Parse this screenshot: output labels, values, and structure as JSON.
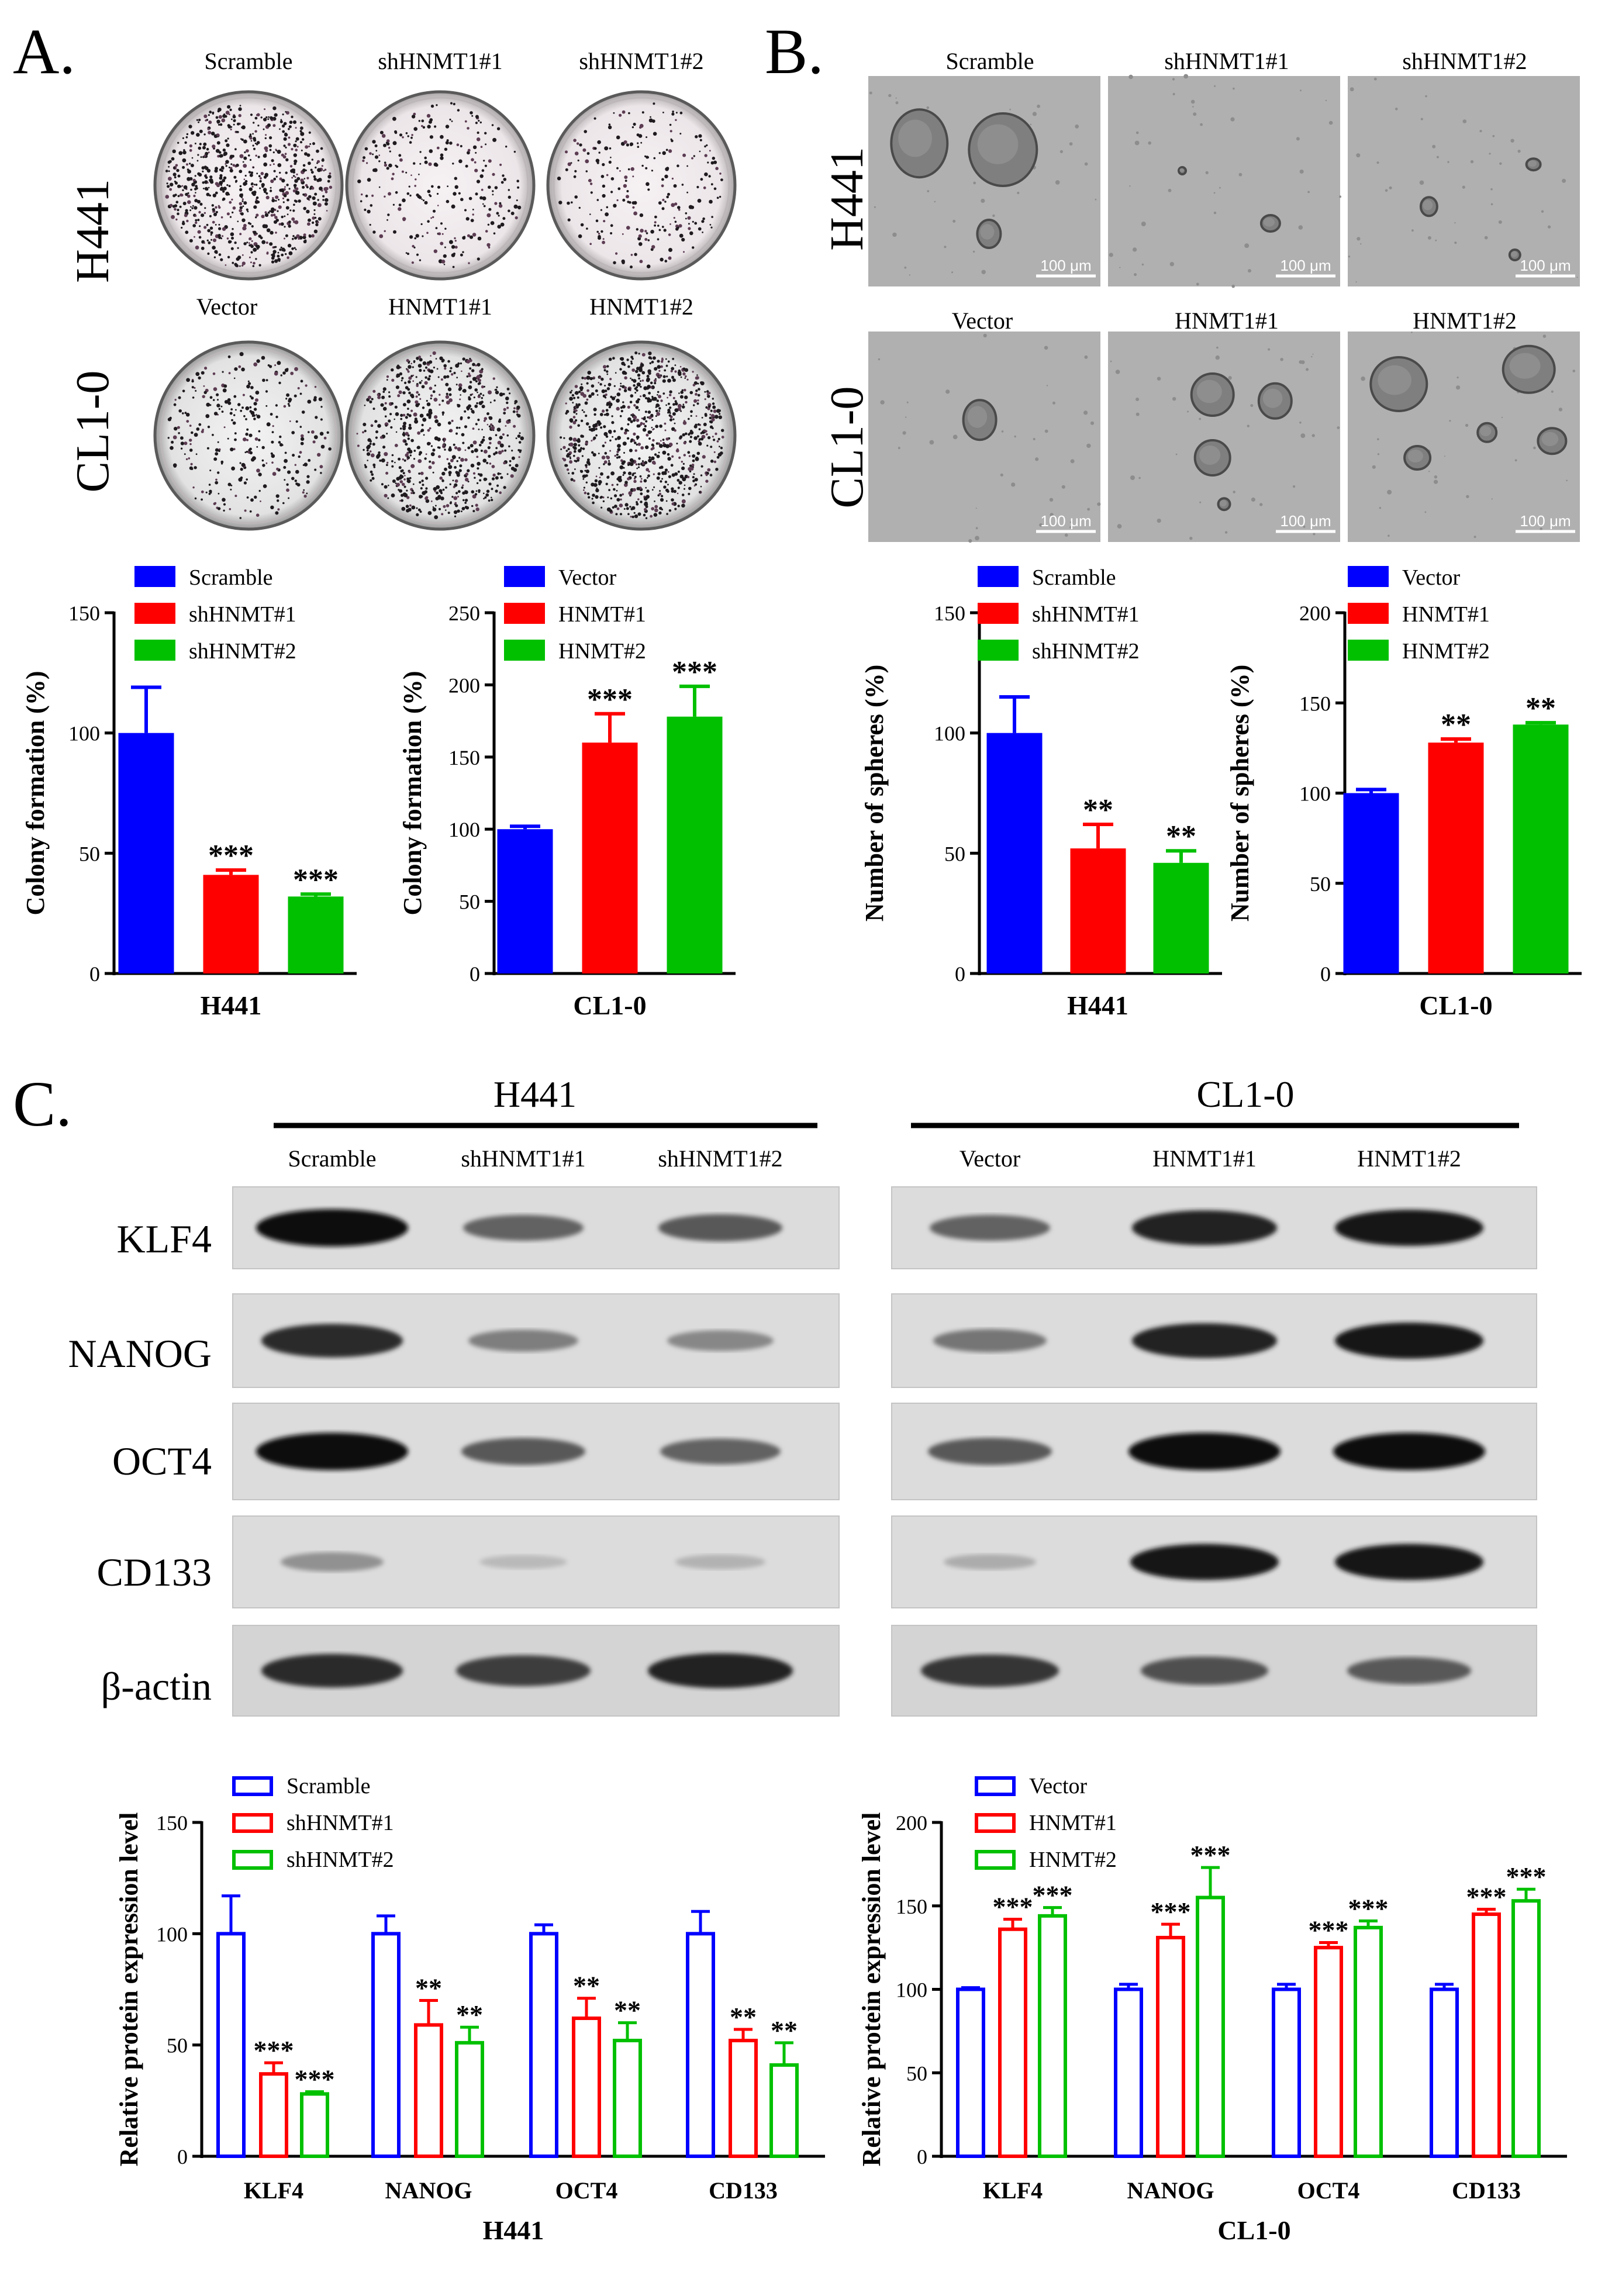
{
  "panels": {
    "A": {
      "letter": "A.",
      "row_labels": [
        "H441",
        "CL1-0"
      ],
      "dish_labels": [
        [
          "Scramble",
          "shHNMT1#1",
          "shHNMT1#2"
        ],
        [
          "Vector",
          "HNMT1#1",
          "HNMT1#2"
        ]
      ],
      "dish_density": [
        [
          0.85,
          0.3,
          0.28
        ],
        [
          0.35,
          0.75,
          0.95
        ]
      ]
    },
    "B": {
      "letter": "B.",
      "row_labels": [
        "H441",
        "CL1-0"
      ],
      "image_labels": [
        [
          "Scramble",
          "shHNMT1#1",
          "shHNMT1#2"
        ],
        [
          "Vector",
          "HNMT1#1",
          "HNMT1#2"
        ]
      ],
      "scale_bar": "100 μm"
    },
    "C": {
      "letter": "C.",
      "groups": [
        {
          "title": "H441",
          "lanes": [
            "Scramble",
            "shHNMT1#1",
            "shHNMT1#2"
          ]
        },
        {
          "title": "CL1-0",
          "lanes": [
            "Vector",
            "HNMT1#1",
            "HNMT1#2"
          ]
        }
      ],
      "proteins": [
        "KLF4",
        "NANOG",
        "OCT4",
        "CD133",
        "β-actin"
      ],
      "band_intensity": {
        "left": [
          [
            1.0,
            0.55,
            0.6
          ],
          [
            0.85,
            0.4,
            0.35
          ],
          [
            1.0,
            0.6,
            0.55
          ],
          [
            0.3,
            0.08,
            0.12
          ],
          [
            0.85,
            0.75,
            0.9
          ]
        ],
        "right": [
          [
            0.55,
            0.9,
            0.95
          ],
          [
            0.45,
            0.9,
            0.95
          ],
          [
            0.6,
            1.0,
            1.0
          ],
          [
            0.15,
            0.95,
            0.95
          ],
          [
            0.8,
            0.65,
            0.6
          ]
        ]
      }
    }
  },
  "colors": {
    "blue": "#0000ff",
    "red": "#ff0000",
    "green": "#00c000"
  },
  "chart_data": [
    {
      "type": "bar",
      "id": "A-H441",
      "categories": [
        "Scramble",
        "shHNMT#1",
        "shHNMT#2"
      ],
      "values": [
        100,
        41,
        32
      ],
      "errors": [
        19,
        2,
        1
      ],
      "significance": [
        "",
        "***",
        "***"
      ],
      "xlabel": "H441",
      "ylabel": "Colony formation (%)",
      "ylim": [
        0,
        150
      ],
      "yticks": [
        0,
        50,
        100,
        150
      ],
      "legend": [
        "Scramble",
        "shHNMT#1",
        "shHNMT#2"
      ]
    },
    {
      "type": "bar",
      "id": "A-CL1-0",
      "categories": [
        "Vector",
        "HNMT#1",
        "HNMT#2"
      ],
      "values": [
        100,
        160,
        178
      ],
      "errors": [
        2,
        20,
        21
      ],
      "significance": [
        "",
        "***",
        "***"
      ],
      "xlabel": "CL1-0",
      "ylabel": "Colony formation (%)",
      "ylim": [
        0,
        250
      ],
      "yticks": [
        0,
        50,
        100,
        150,
        200,
        250
      ],
      "legend": [
        "Vector",
        "HNMT#1",
        "HNMT#2"
      ]
    },
    {
      "type": "bar",
      "id": "B-H441",
      "categories": [
        "Scramble",
        "shHNMT#1",
        "shHNMT#2"
      ],
      "values": [
        100,
        52,
        46
      ],
      "errors": [
        15,
        10,
        5
      ],
      "significance": [
        "",
        "**",
        "**"
      ],
      "xlabel": "H441",
      "ylabel": "Number of spheres (%)",
      "ylim": [
        0,
        150
      ],
      "yticks": [
        0,
        50,
        100,
        150
      ],
      "legend": [
        "Scramble",
        "shHNMT#1",
        "shHNMT#2"
      ]
    },
    {
      "type": "bar",
      "id": "B-CL1-0",
      "categories": [
        "Vector",
        "HNMT#1",
        "HNMT#2"
      ],
      "values": [
        100,
        128,
        138
      ],
      "errors": [
        2,
        2,
        1
      ],
      "significance": [
        "",
        "**",
        "**"
      ],
      "xlabel": "CL1-0",
      "ylabel": "Number of spheres (%)",
      "ylim": [
        0,
        200
      ],
      "yticks": [
        0,
        50,
        100,
        150,
        200
      ],
      "legend": [
        "Vector",
        "HNMT#1",
        "HNMT#2"
      ]
    },
    {
      "type": "bar",
      "id": "C-H441",
      "categories": [
        "KLF4",
        "NANOG",
        "OCT4",
        "CD133"
      ],
      "series": [
        {
          "name": "Scramble",
          "values": [
            100,
            100,
            100,
            100
          ],
          "errors": [
            17,
            8,
            4,
            10
          ],
          "significance": [
            "",
            "",
            "",
            ""
          ]
        },
        {
          "name": "shHNMT#1",
          "values": [
            37,
            59,
            62,
            52
          ],
          "errors": [
            5,
            11,
            9,
            5
          ],
          "significance": [
            "***",
            "**",
            "**",
            "**"
          ]
        },
        {
          "name": "shHNMT#2",
          "values": [
            28,
            51,
            52,
            41
          ],
          "errors": [
            1,
            7,
            8,
            10
          ],
          "significance": [
            "***",
            "**",
            "**",
            "**"
          ]
        }
      ],
      "xlabel": "H441",
      "ylabel": "Relative protein expression level",
      "ylim": [
        0,
        150
      ],
      "yticks": [
        0,
        50,
        100,
        150
      ]
    },
    {
      "type": "bar",
      "id": "C-CL1-0",
      "categories": [
        "KLF4",
        "NANOG",
        "OCT4",
        "CD133"
      ],
      "series": [
        {
          "name": "Vector",
          "values": [
            100,
            100,
            100,
            100
          ],
          "errors": [
            1,
            3,
            3,
            3
          ],
          "significance": [
            "",
            "",
            "",
            ""
          ]
        },
        {
          "name": "HNMT#1",
          "values": [
            136,
            131,
            125,
            145
          ],
          "errors": [
            6,
            8,
            3,
            3
          ],
          "significance": [
            "***",
            "***",
            "***",
            "***"
          ]
        },
        {
          "name": "HNMT#2",
          "values": [
            144,
            155,
            137,
            153
          ],
          "errors": [
            5,
            18,
            4,
            7
          ],
          "significance": [
            "***",
            "***",
            "***",
            "***"
          ]
        }
      ],
      "xlabel": "CL1-0",
      "ylabel": "Relative protein expression level",
      "ylim": [
        0,
        200
      ],
      "yticks": [
        0,
        50,
        100,
        150,
        200
      ]
    }
  ]
}
